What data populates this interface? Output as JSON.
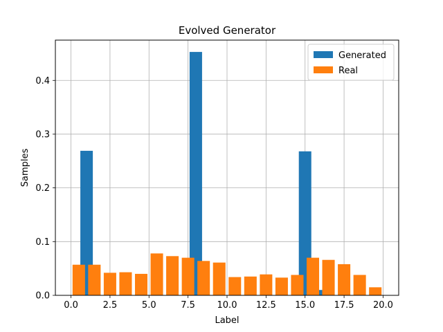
{
  "chart_data": {
    "type": "bar",
    "title": "Evolved Generator",
    "xlabel": "Label",
    "ylabel": "Samples",
    "xlim": [
      -1,
      21
    ],
    "ylim": [
      0,
      0.475
    ],
    "xticks": [
      0.0,
      2.5,
      5.0,
      7.5,
      10.0,
      12.5,
      15.0,
      17.5,
      20.0
    ],
    "xtick_labels": [
      "0.0",
      "2.5",
      "5.0",
      "7.5",
      "10.0",
      "12.5",
      "15.0",
      "17.5",
      "20.0"
    ],
    "yticks": [
      0.0,
      0.1,
      0.2,
      0.3,
      0.4
    ],
    "ytick_labels": [
      "0.0",
      "0.1",
      "0.2",
      "0.3",
      "0.4"
    ],
    "grid": true,
    "legend_position": "top-right",
    "bar_width": 0.8,
    "series": [
      {
        "name": "Generated",
        "color": "#1f77b4",
        "x": [
          1,
          8,
          15,
          16
        ],
        "values": [
          0.269,
          0.453,
          0.268,
          0.01
        ]
      },
      {
        "name": "Real",
        "color": "#ff7f0e",
        "x": [
          0.5,
          1.5,
          2.5,
          3.5,
          4.5,
          5.5,
          6.5,
          7.5,
          8.5,
          9.5,
          10.5,
          11.5,
          12.5,
          13.5,
          14.5,
          15.5,
          16.5,
          17.5,
          18.5,
          19.5
        ],
        "values": [
          0.057,
          0.057,
          0.042,
          0.043,
          0.04,
          0.078,
          0.073,
          0.07,
          0.064,
          0.061,
          0.034,
          0.035,
          0.039,
          0.033,
          0.038,
          0.07,
          0.066,
          0.058,
          0.038,
          0.015
        ]
      }
    ]
  }
}
